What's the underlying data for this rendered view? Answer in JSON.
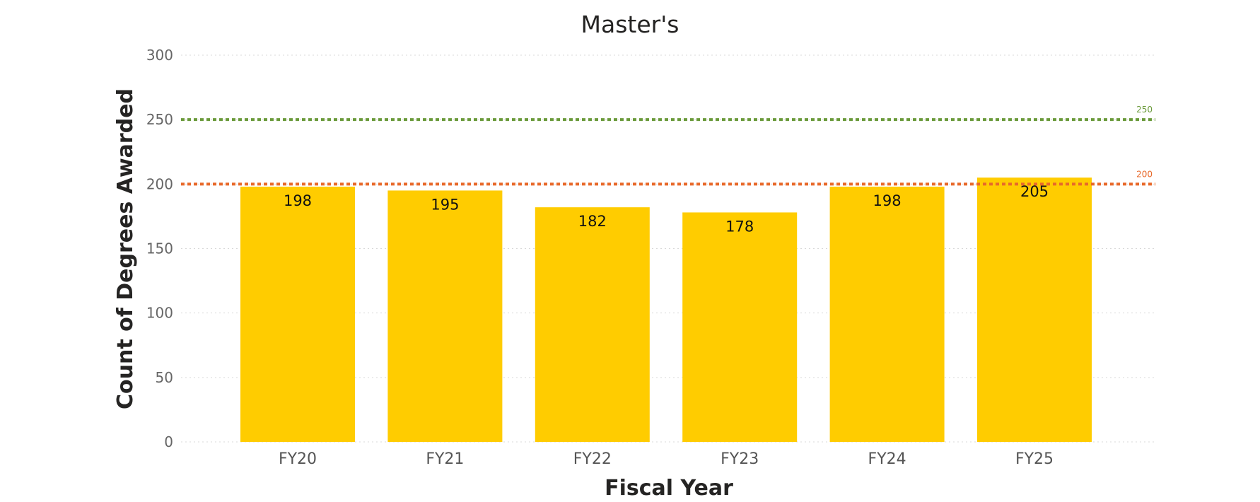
{
  "chart_data": {
    "type": "bar",
    "title": "Master's",
    "xlabel": "Fiscal Year",
    "ylabel": "Count of Degrees Awarded",
    "categories": [
      "FY20",
      "FY21",
      "FY22",
      "FY23",
      "FY24",
      "FY25"
    ],
    "values": [
      198,
      195,
      182,
      178,
      198,
      205
    ],
    "ylim": [
      0,
      300
    ],
    "yticks": [
      0,
      50,
      100,
      150,
      200,
      250,
      300
    ],
    "grid": true,
    "bar_color": "#FFCC00",
    "reference_lines": [
      {
        "value": 250,
        "label": "250",
        "color": "#6A9A3A",
        "style": "dotted"
      },
      {
        "value": 200,
        "label": "200",
        "color": "#E8692A",
        "style": "dotted"
      }
    ]
  }
}
